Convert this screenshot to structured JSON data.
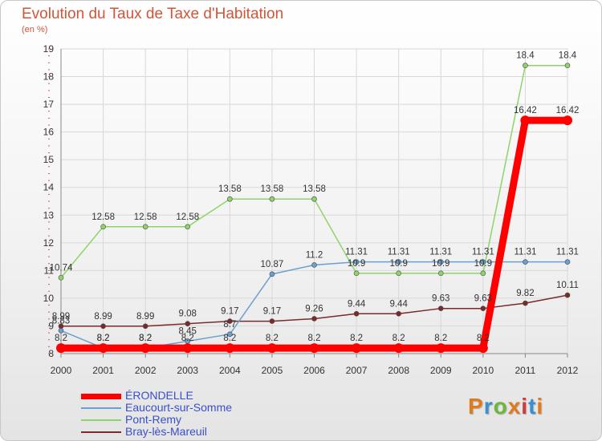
{
  "title": "Evolution du Taux de Taxe d'Habitation",
  "subtitle": "(en %)",
  "logo": {
    "text": "Proxiti",
    "colors": [
      "#e07a1e",
      "#3a8fd0",
      "#6ab83a",
      "#e07a1e",
      "#d03a3a",
      "#3a8fd0",
      "#e07a1e"
    ]
  },
  "chart_data": {
    "type": "line",
    "categories": [
      "2000",
      "2001",
      "2002",
      "2003",
      "2004",
      "2005",
      "2006",
      "2007",
      "2008",
      "2009",
      "2010",
      "2011",
      "2012"
    ],
    "ylim": [
      8,
      19
    ],
    "yticks": [
      8,
      9,
      10,
      11,
      12,
      13,
      14,
      15,
      16,
      17,
      18,
      19
    ],
    "grid": true,
    "legend_position": "bottom-left",
    "series": [
      {
        "name": "ÉRONDELLE",
        "color": "#ff0000",
        "width": 9,
        "marker_r": 6,
        "values": [
          8.2,
          8.2,
          8.2,
          8.2,
          8.2,
          8.2,
          8.2,
          8.2,
          8.2,
          8.2,
          8.2,
          16.42,
          16.42
        ],
        "labels": [
          "8.2",
          "8.2",
          "8.2",
          "8.2",
          "8.2",
          "8.2",
          "8.2",
          "8.2",
          "8.2",
          "8.2",
          "8.2",
          "16.42",
          "16.42"
        ]
      },
      {
        "name": "Eaucourt-sur-Somme",
        "color": "#6a9fd0",
        "width": 1.5,
        "marker_r": 3,
        "values": [
          8.83,
          8.2,
          8.2,
          8.45,
          8.7,
          10.87,
          11.2,
          11.31,
          11.31,
          11.31,
          11.31,
          11.31,
          11.31
        ],
        "labels": [
          "8.83",
          "8.2",
          "8.2",
          "8.45",
          "8.7",
          "10.87",
          "11.2",
          "11.31",
          "11.31",
          "11.31",
          "11.31",
          "11.31",
          "11.31"
        ]
      },
      {
        "name": "Pont-Remy",
        "color": "#8fd46a",
        "width": 1.5,
        "marker_r": 3,
        "values": [
          10.74,
          12.58,
          12.58,
          12.58,
          13.58,
          13.58,
          13.58,
          10.9,
          10.9,
          10.9,
          10.9,
          18.4,
          18.4
        ],
        "labels": [
          "10.74",
          "12.58",
          "12.58",
          "12.58",
          "13.58",
          "13.58",
          "13.58",
          "10.9",
          "10.9",
          "10.9",
          "10.9",
          "18.4",
          "18.4"
        ]
      },
      {
        "name": "Bray-lès-Mareuil",
        "color": "#7a2a2a",
        "width": 1.5,
        "marker_r": 3,
        "values": [
          8.99,
          8.99,
          8.99,
          9.08,
          9.17,
          9.17,
          9.26,
          9.44,
          9.44,
          9.63,
          9.63,
          9.82,
          10.11
        ],
        "labels": [
          "8.99",
          "8.99",
          "8.99",
          "9.08",
          "9.17",
          "9.17",
          "9.26",
          "9.44",
          "9.44",
          "9.63",
          "9.63",
          "9.82",
          "10.11"
        ]
      }
    ]
  }
}
